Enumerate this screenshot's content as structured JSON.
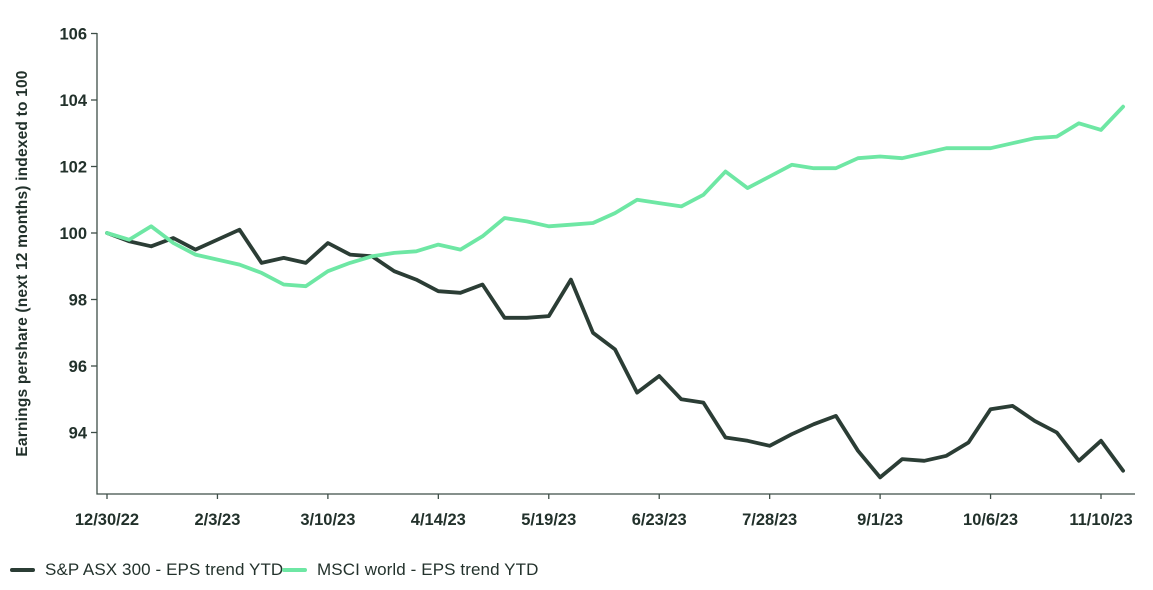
{
  "chart_data": {
    "type": "line",
    "title": "",
    "xlabel": "",
    "ylabel": "Earnings pershare (next 12 months) indexed to 100",
    "ylim": [
      92.2,
      106
    ],
    "yticks": [
      94,
      96,
      98,
      100,
      102,
      104,
      106
    ],
    "grid": false,
    "legend_position": "bottom-left",
    "x": [
      "12/30/22",
      "1/6/23",
      "1/13/23",
      "1/20/23",
      "1/27/23",
      "2/3/23",
      "2/10/23",
      "2/17/23",
      "2/24/23",
      "3/3/23",
      "3/10/23",
      "3/17/23",
      "3/24/23",
      "3/31/23",
      "4/7/23",
      "4/14/23",
      "4/21/23",
      "4/28/23",
      "5/5/23",
      "5/12/23",
      "5/19/23",
      "5/26/23",
      "6/2/23",
      "6/9/23",
      "6/16/23",
      "6/23/23",
      "6/30/23",
      "7/7/23",
      "7/14/23",
      "7/21/23",
      "7/28/23",
      "8/4/23",
      "8/11/23",
      "8/18/23",
      "8/25/23",
      "9/1/23",
      "9/8/23",
      "9/15/23",
      "9/22/23",
      "9/29/23",
      "10/6/23",
      "10/13/23",
      "10/20/23",
      "10/27/23",
      "11/3/23",
      "11/10/23",
      "11/17/23"
    ],
    "x_tick_indices": [
      0,
      5,
      10,
      15,
      20,
      25,
      30,
      35,
      40,
      45
    ],
    "x_tick_labels": [
      "12/30/22",
      "2/3/23",
      "3/10/23",
      "4/14/23",
      "5/19/23",
      "6/23/23",
      "7/28/23",
      "9/1/23",
      "10/6/23",
      "11/10/23"
    ],
    "series": [
      {
        "name": "S&P ASX 300 - EPS trend YTD",
        "color": "#2b3d35",
        "values": [
          100,
          99.75,
          99.6,
          99.85,
          99.5,
          99.8,
          100.1,
          99.1,
          99.25,
          99.1,
          99.7,
          99.35,
          99.3,
          98.85,
          98.6,
          98.25,
          98.2,
          98.45,
          97.45,
          97.45,
          97.5,
          98.6,
          97.0,
          96.5,
          95.2,
          95.7,
          95.0,
          94.9,
          93.85,
          93.75,
          93.6,
          93.95,
          94.25,
          94.5,
          93.45,
          92.65,
          93.2,
          93.15,
          93.3,
          93.7,
          94.7,
          94.8,
          94.35,
          94.0,
          93.15,
          93.75,
          92.85
        ]
      },
      {
        "name": "MSCI world - EPS trend YTD",
        "color": "#6ee7a4",
        "values": [
          100,
          99.8,
          100.2,
          99.7,
          99.35,
          99.2,
          99.05,
          98.8,
          98.45,
          98.4,
          98.85,
          99.1,
          99.3,
          99.4,
          99.45,
          99.65,
          99.5,
          99.9,
          100.45,
          100.35,
          100.2,
          100.25,
          100.3,
          100.6,
          101.0,
          100.9,
          100.8,
          101.15,
          101.85,
          101.35,
          101.7,
          102.05,
          101.95,
          101.95,
          102.25,
          102.3,
          102.25,
          102.4,
          102.55,
          102.55,
          102.55,
          102.7,
          102.85,
          102.9,
          103.3,
          103.1,
          103.8
        ]
      }
    ]
  },
  "colors": {
    "background": "#ffffff",
    "axis": "#3e4e47",
    "text": "#22312b",
    "series_asx": "#2b3d35",
    "series_msci": "#6ee7a4"
  }
}
